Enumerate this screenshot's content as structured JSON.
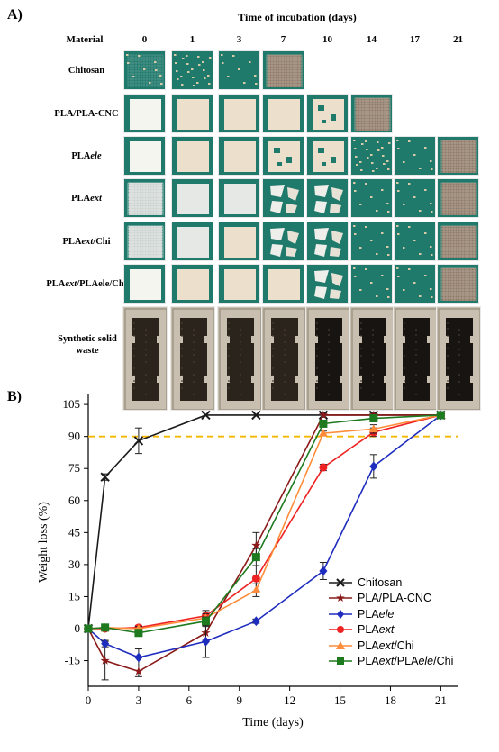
{
  "panel_a": {
    "label": "A)",
    "header_title": "Time of incubation (days)",
    "material_header": "Material",
    "days": [
      "0",
      "1",
      "3",
      "7",
      "10",
      "14",
      "17",
      "21"
    ],
    "rows": [
      {
        "name": "Chitosan",
        "italic_part": "",
        "suffix": "",
        "tiles": [
          "mesh-dots",
          "flakes",
          "flakes-sparse",
          "mesh"
        ]
      },
      {
        "name": "PLA/PLA-CNC",
        "italic_part": "",
        "suffix": "",
        "tiles": [
          "white",
          "cream",
          "cream",
          "cream",
          "cream-holes",
          "mesh"
        ]
      },
      {
        "name": "PLA",
        "italic_part": "ele",
        "suffix": "",
        "tiles": [
          "white",
          "cream",
          "cream",
          "cream-holes",
          "cream-holes",
          "flakes",
          "flakes-sparse",
          "mesh"
        ]
      },
      {
        "name": "PLA",
        "italic_part": "ext",
        "suffix": "",
        "tiles": [
          "mesh-light",
          "white-grey",
          "white-grey",
          "shards",
          "shards",
          "flakes-sparse",
          "flakes-sparse",
          "mesh"
        ]
      },
      {
        "name": "PLA",
        "italic_part": "ext",
        "suffix": "/Chi",
        "tiles": [
          "mesh-light",
          "white-grey",
          "cream",
          "shards",
          "shards",
          "flakes-sparse",
          "flakes-sparse",
          "mesh"
        ]
      },
      {
        "name": "PLA",
        "italic_part": "ext",
        "suffix": "/PLAele/Chi",
        "tiles": [
          "white",
          "cream",
          "cream",
          "cream",
          "shards",
          "flakes-sparse",
          "flakes-sparse",
          "mesh"
        ]
      }
    ],
    "waste_row": {
      "line1": "Synthetic solid",
      "line2": "waste"
    }
  },
  "chart_data": {
    "type": "line",
    "panel_label": "B)",
    "xlabel": "Time (days)",
    "ylabel": "Weight loss (%)",
    "xlim": [
      0,
      22
    ],
    "ylim": [
      -27,
      108
    ],
    "xticks": [
      0,
      3,
      6,
      9,
      12,
      15,
      18,
      21
    ],
    "yticks": [
      -15,
      0,
      15,
      30,
      45,
      60,
      75,
      90,
      105
    ],
    "reference_line": {
      "y": 90,
      "color": "#f5b800",
      "style": "dashed"
    },
    "series": [
      {
        "name": "Chitosan",
        "marker": "x",
        "color": "#1a1a1a",
        "x": [
          0,
          1,
          3,
          7,
          10,
          14,
          17,
          21
        ],
        "y": [
          0,
          71,
          88,
          100,
          100,
          100,
          100,
          100
        ],
        "err": [
          0,
          1.5,
          6,
          0,
          0,
          0,
          0,
          0
        ]
      },
      {
        "name": "PLA/PLA-CNC",
        "marker": "star",
        "color": "#8b1a1a",
        "x": [
          0,
          1,
          3,
          7,
          10,
          14,
          17,
          21
        ],
        "y": [
          0,
          -15,
          -20,
          -2,
          39,
          100,
          100,
          100
        ],
        "err": [
          0,
          9,
          2.5,
          3,
          6,
          1,
          1,
          0
        ]
      },
      {
        "name": "PLAele",
        "marker": "diamond",
        "color": "#1f2dbf",
        "x": [
          0,
          1,
          3,
          7,
          10,
          14,
          17,
          21
        ],
        "y": [
          0,
          -7,
          -13.5,
          -6,
          3.5,
          27,
          76,
          100
        ],
        "err": [
          0,
          1.5,
          4,
          7.5,
          1,
          4,
          5.5,
          0
        ]
      },
      {
        "name": "PLAext",
        "marker": "circle",
        "color": "#ee2222",
        "x": [
          0,
          1,
          3,
          7,
          10,
          14,
          17,
          21
        ],
        "y": [
          0,
          0,
          0.5,
          6,
          23.5,
          75.5,
          92,
          100
        ],
        "err": [
          0,
          0.5,
          1,
          2.5,
          6,
          1.5,
          2,
          0
        ]
      },
      {
        "name": "PLAext/Chi",
        "marker": "triangle",
        "color": "#ff8c3a",
        "x": [
          0,
          1,
          3,
          7,
          10,
          14,
          17,
          21
        ],
        "y": [
          0,
          0.5,
          0,
          5,
          18,
          91.5,
          93.5,
          100
        ],
        "err": [
          0,
          0.5,
          1,
          2,
          3,
          1,
          2,
          0
        ]
      },
      {
        "name": "PLAext/PLAele/Chi",
        "marker": "square",
        "color": "#1e7a1e",
        "x": [
          0,
          1,
          3,
          7,
          10,
          14,
          17,
          21
        ],
        "y": [
          0,
          0.5,
          -2,
          3.5,
          33.5,
          96,
          98.5,
          100
        ],
        "err": [
          0,
          0.5,
          1,
          2,
          4,
          1,
          1,
          0
        ]
      }
    ]
  },
  "legend": [
    {
      "base": "Chitosan",
      "i1": "",
      "mid": "",
      "i2": "",
      "tail": ""
    },
    {
      "base": "PLA/PLA-CNC",
      "i1": "",
      "mid": "",
      "i2": "",
      "tail": ""
    },
    {
      "base": "PLA",
      "i1": "ele",
      "mid": "",
      "i2": "",
      "tail": ""
    },
    {
      "base": "PLA",
      "i1": "ext",
      "mid": "",
      "i2": "",
      "tail": ""
    },
    {
      "base": "PLA",
      "i1": "ext",
      "mid": "/Chi",
      "i2": "",
      "tail": ""
    },
    {
      "base": "PLA",
      "i1": "ext",
      "mid": "/PLA",
      "i2": "ele",
      "tail": "/Chi"
    }
  ],
  "colors": {
    "tile_bg": "#1f7a6c",
    "tile_white": "#f5f5f0",
    "tile_cream": "#ece0cc",
    "mesh": "#8d7a6a",
    "waste_tray": "#c9bfb0",
    "soil": "#1e1a15"
  }
}
